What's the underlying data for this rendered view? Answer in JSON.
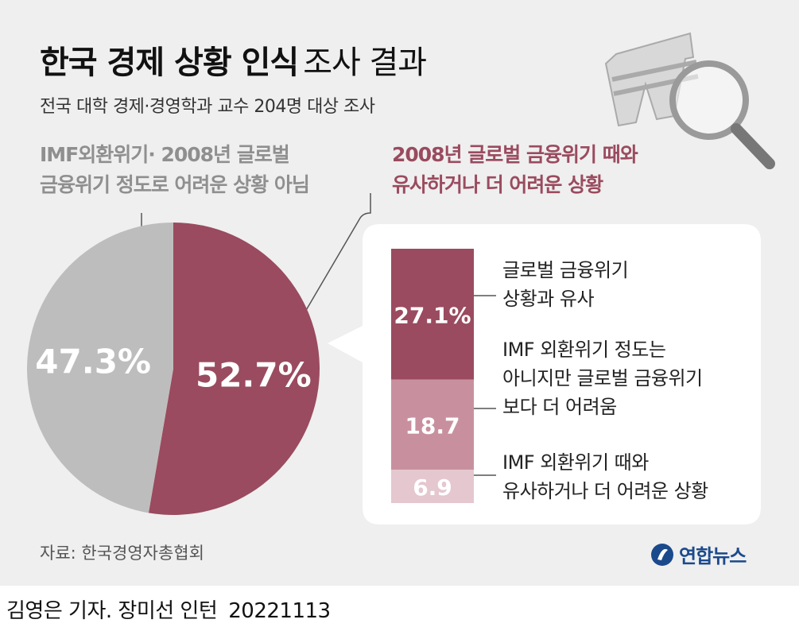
{
  "title_bold": "한국 경제 상황 인식",
  "title_regular": "조사 결과",
  "subtitle": "전국 대학 경제·경영학과 교수 204명 대상 조사",
  "label_gray": [
    "IMF외환위기· 2008년 글로벌",
    "금융위기 정도로 어려운 상황 아님"
  ],
  "label_red": [
    "2008년 글로벌 금융위기 때와",
    "유사하거나 더 어려운 상황"
  ],
  "breakdown_notes": [
    [
      "글로벌 금융위기",
      "상황과 유사"
    ],
    [
      "IMF 외환위기 정도는",
      "아니지만 글로벌 금융위기",
      "보다 더 어려움"
    ],
    [
      "IMF 외환위기 때와",
      "유사하거나 더 어려운 상황"
    ]
  ],
  "source": "자료: 한국경영자총협회",
  "logo": "연합뉴스",
  "credit": {
    "author": "김영은 기자. 장미선 인턴",
    "date": "20221113"
  },
  "colors": {
    "red": "#9a4b5f",
    "gray": "#bdbdbd",
    "mid": "#c8909f",
    "light": "#e4c7cf",
    "background": "#efefef"
  },
  "icons": [
    "won-sign-icon",
    "magnifier-icon"
  ],
  "chart_data": [
    {
      "type": "pie",
      "values": [
        52.7,
        47.3
      ],
      "value_labels": [
        "52.7%",
        "47.3%"
      ],
      "colors": [
        "#9a4b5f",
        "#bdbdbd"
      ]
    },
    {
      "type": "bar",
      "stacked": true,
      "values": [
        27.1,
        18.7,
        6.9
      ],
      "value_labels": [
        "27.1%",
        "18.7",
        "6.9"
      ],
      "colors": [
        "#9a4b5f",
        "#c8909f",
        "#e4c7cf"
      ]
    }
  ]
}
